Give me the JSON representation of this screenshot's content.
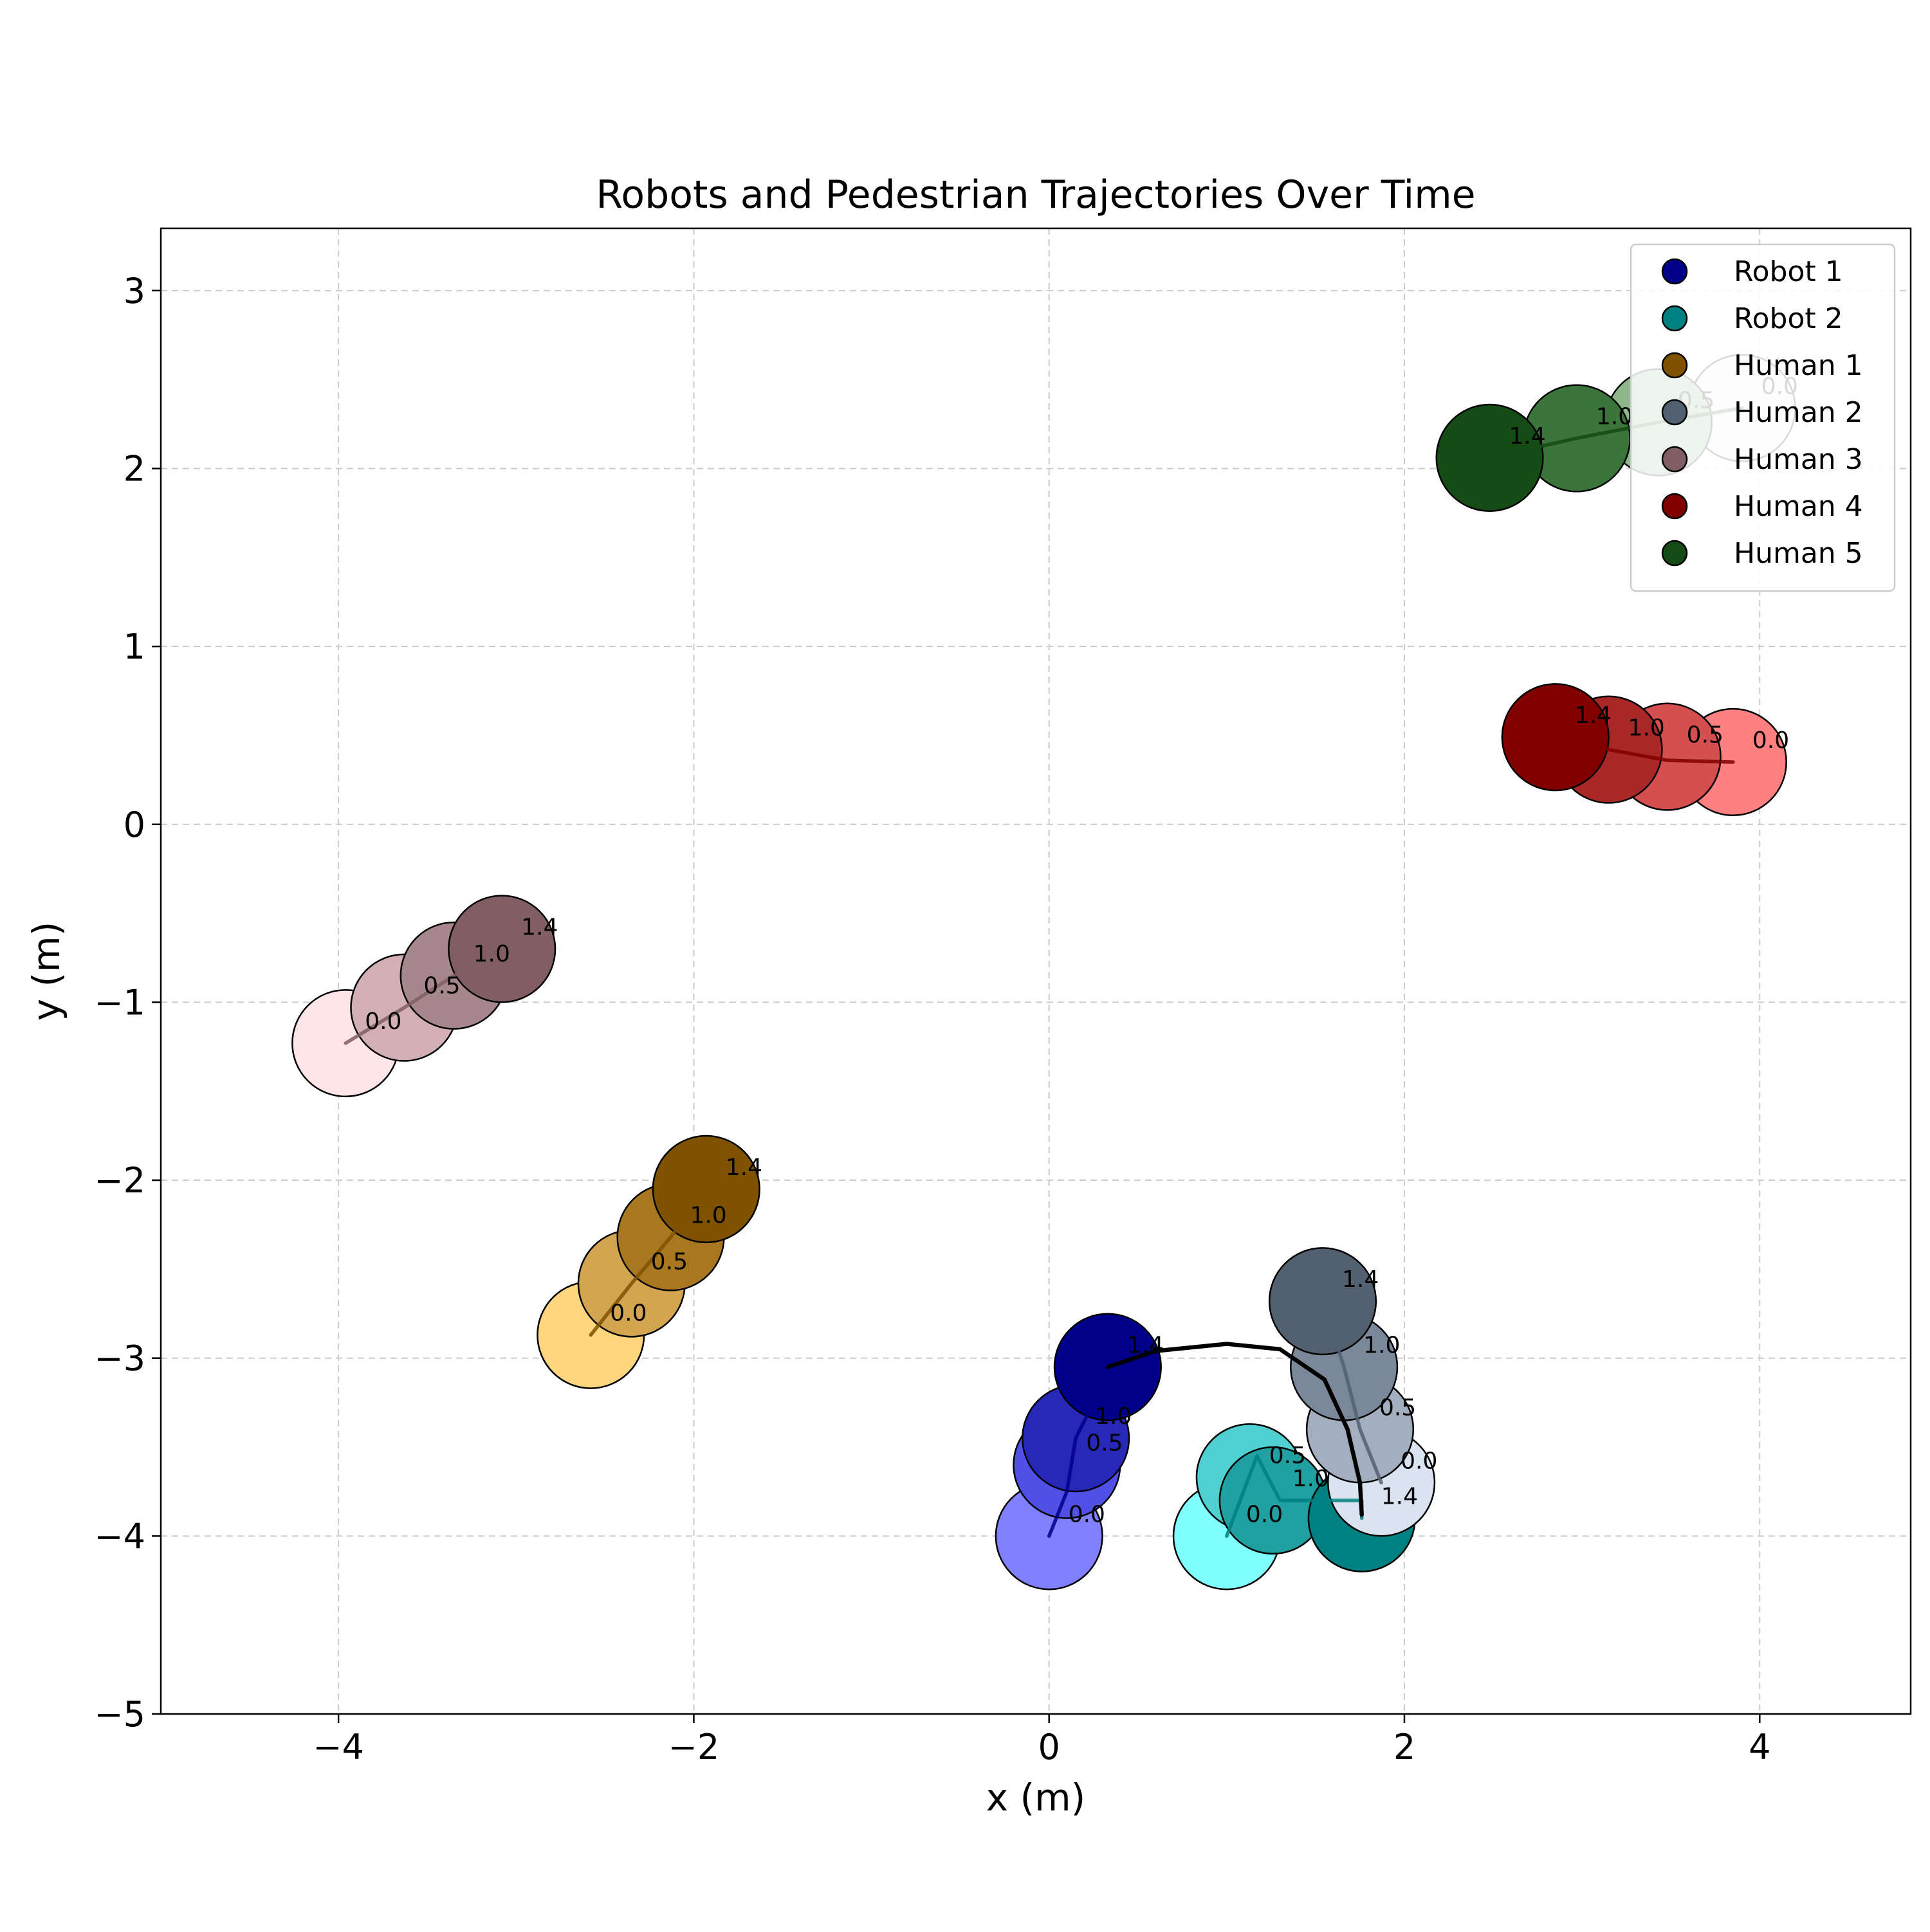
{
  "chart_data": {
    "type": "scatter",
    "title": "Robots and Pedestrian Trajectories Over Time",
    "xlabel": "x (m)",
    "ylabel": "y (m)",
    "xlim": [
      -5,
      4.85
    ],
    "ylim": [
      -5,
      3.35
    ],
    "xticks": [
      -4,
      -2,
      0,
      2,
      4
    ],
    "yticks": [
      -5,
      -4,
      -3,
      -2,
      -1,
      0,
      1,
      2,
      3
    ],
    "grid": true,
    "legend_position": "top-right",
    "marker_radius": 0.3,
    "time_labels": [
      "0.0",
      "0.5",
      "1.0",
      "1.4"
    ],
    "series": [
      {
        "name": "Robot 1",
        "color": "#00008b",
        "line_color": "#00008b",
        "point_colors": [
          "#8080ff",
          "#5050e6",
          "#2828b8",
          "#00008b"
        ],
        "points": [
          [
            0.0,
            -4.0
          ],
          [
            0.1,
            -3.6
          ],
          [
            0.15,
            -3.45
          ],
          [
            0.33,
            -3.05
          ]
        ],
        "path": [
          [
            0.0,
            -4.0
          ],
          [
            0.1,
            -3.75
          ],
          [
            0.15,
            -3.45
          ],
          [
            0.25,
            -3.25
          ],
          [
            0.33,
            -3.05
          ]
        ]
      },
      {
        "name": "Robot 2",
        "color": "#008080",
        "line_color": "#008080",
        "point_colors": [
          "#80ffff",
          "#50d0d0",
          "#20a0a0",
          "#008080"
        ],
        "points": [
          [
            1.0,
            -4.0
          ],
          [
            1.13,
            -3.67
          ],
          [
            1.26,
            -3.8
          ],
          [
            1.76,
            -3.9
          ]
        ],
        "path": [
          [
            1.0,
            -4.0
          ],
          [
            1.17,
            -3.55
          ],
          [
            1.3,
            -3.8
          ],
          [
            1.76,
            -3.8
          ],
          [
            1.76,
            -3.9
          ]
        ]
      },
      {
        "name": "Human 1",
        "color": "#7f5200",
        "line_color": "#7f5200",
        "point_colors": [
          "#ffd580",
          "#d4a550",
          "#a87820",
          "#7f5200"
        ],
        "points": [
          [
            -2.58,
            -2.87
          ],
          [
            -2.35,
            -2.58
          ],
          [
            -2.13,
            -2.32
          ],
          [
            -1.93,
            -2.05
          ]
        ],
        "path": [
          [
            -2.58,
            -2.87
          ],
          [
            -2.35,
            -2.58
          ],
          [
            -2.13,
            -2.32
          ],
          [
            -1.93,
            -2.05
          ]
        ]
      },
      {
        "name": "Human 2",
        "color": "#536070",
        "line_color": "#536070",
        "point_colors": [
          "#dae4f0",
          "#a3afbf",
          "#7b8899",
          "#536070"
        ],
        "points": [
          [
            1.87,
            -3.7
          ],
          [
            1.75,
            -3.4
          ],
          [
            1.66,
            -3.05
          ],
          [
            1.54,
            -2.68
          ]
        ],
        "path": [
          [
            1.87,
            -3.7
          ],
          [
            1.75,
            -3.4
          ],
          [
            1.66,
            -3.05
          ],
          [
            1.54,
            -2.68
          ]
        ]
      },
      {
        "name": "Human 3",
        "color": "#805e64",
        "line_color": "#805e64",
        "point_colors": [
          "#ffe4e8",
          "#d2b0b6",
          "#a6878d",
          "#805e64"
        ],
        "points": [
          [
            -3.96,
            -1.23
          ],
          [
            -3.63,
            -1.03
          ],
          [
            -3.35,
            -0.85
          ],
          [
            -3.08,
            -0.7
          ]
        ],
        "path": [
          [
            -3.96,
            -1.23
          ],
          [
            -3.63,
            -1.03
          ],
          [
            -3.35,
            -0.85
          ],
          [
            -3.08,
            -0.7
          ]
        ]
      },
      {
        "name": "Human 4",
        "color": "#800000",
        "line_color": "#800000",
        "point_colors": [
          "#ff8080",
          "#d45050",
          "#a82828",
          "#800000"
        ],
        "points": [
          [
            3.85,
            0.35
          ],
          [
            3.48,
            0.38
          ],
          [
            3.15,
            0.42
          ],
          [
            2.85,
            0.49
          ]
        ],
        "path": [
          [
            3.85,
            0.35
          ],
          [
            3.48,
            0.36
          ],
          [
            3.15,
            0.42
          ],
          [
            2.85,
            0.49
          ]
        ]
      },
      {
        "name": "Human 5",
        "color": "#154b15",
        "line_color": "#154b15",
        "point_colors": [
          "#e8f2e8",
          "#8cb88c",
          "#3b753b",
          "#154b15"
        ],
        "points": [
          [
            3.9,
            2.34
          ],
          [
            3.43,
            2.26
          ],
          [
            2.97,
            2.17
          ],
          [
            2.48,
            2.06
          ]
        ],
        "path": [
          [
            3.9,
            2.34
          ],
          [
            3.43,
            2.26
          ],
          [
            2.97,
            2.17
          ],
          [
            2.48,
            2.06
          ]
        ]
      }
    ],
    "planned_path": {
      "color": "#000000",
      "points": [
        [
          0.33,
          -3.05
        ],
        [
          0.6,
          -2.96
        ],
        [
          1.0,
          -2.92
        ],
        [
          1.3,
          -2.95
        ],
        [
          1.55,
          -3.12
        ],
        [
          1.68,
          -3.4
        ],
        [
          1.75,
          -3.7
        ],
        [
          1.76,
          -3.88
        ]
      ]
    }
  }
}
